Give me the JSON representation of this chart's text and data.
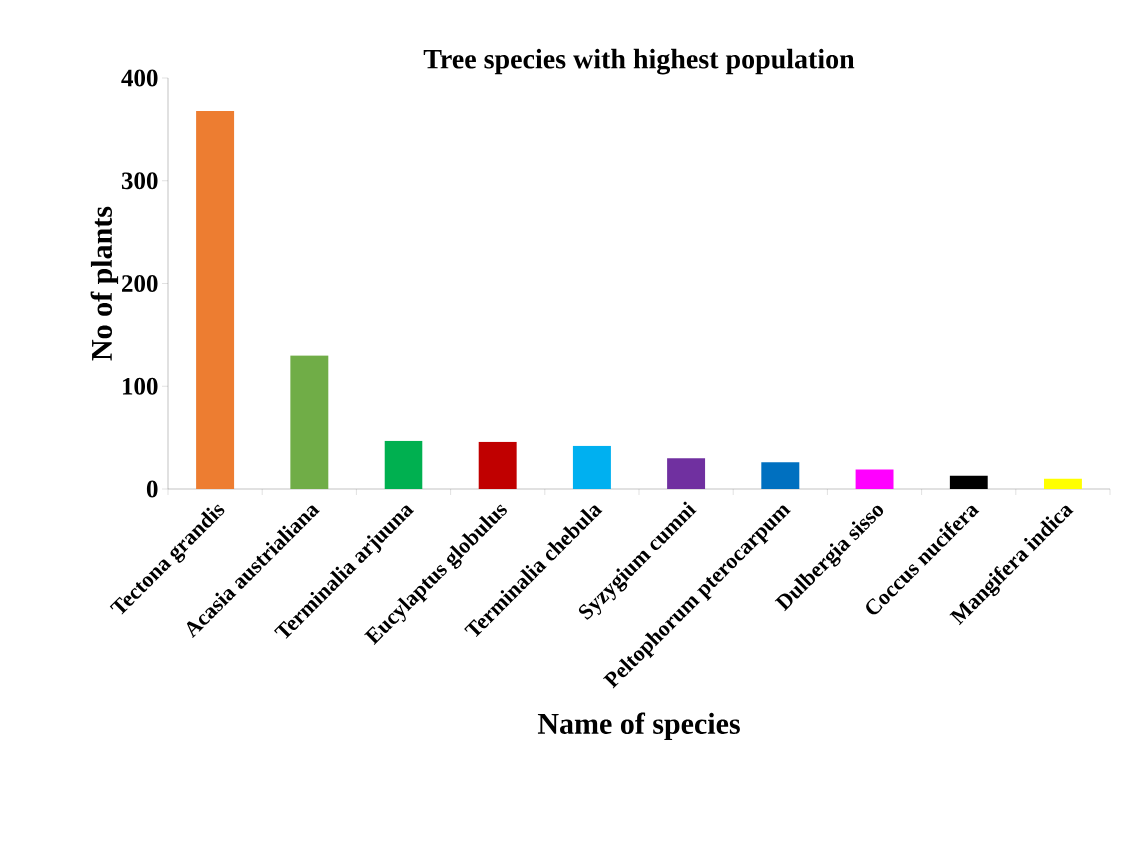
{
  "chart_data": {
    "type": "bar",
    "title": "Tree species with highest population",
    "xlabel": "Name of species",
    "ylabel": "No of plants",
    "categories": [
      "Tectona grandis",
      "Acasia austrialiana",
      "Terminalia arjuuna",
      "Eucylaptus globulus",
      "Terminalia chebula",
      "Syzygium cumni",
      "Peltophorum pterocarpum",
      "Dulbergia sisso",
      "Coccus nucifera",
      "Mangifera indica"
    ],
    "values": [
      368,
      130,
      47,
      46,
      42,
      30,
      26,
      19,
      13,
      10
    ],
    "colors": [
      "#ed7d31",
      "#70ad47",
      "#00b050",
      "#c00000",
      "#00b0f0",
      "#7030a0",
      "#0070c0",
      "#ff00ff",
      "#000000",
      "#ffff00"
    ],
    "ylim": [
      0,
      400
    ],
    "yticks": [
      0,
      100,
      200,
      300,
      400
    ]
  }
}
